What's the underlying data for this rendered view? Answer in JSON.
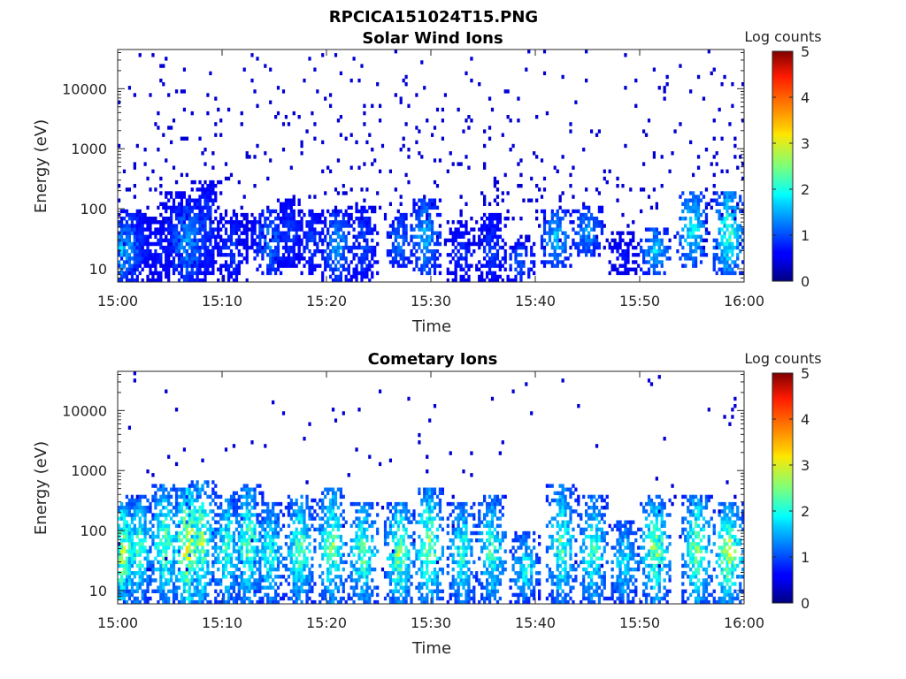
{
  "figure": {
    "title": "RPCICA151024T15.PNG"
  },
  "chart_data": [
    {
      "type": "heatmap",
      "title": "Solar Wind Ions",
      "xlabel": "Time",
      "ylabel": "Energy (eV)",
      "x_ticks": [
        "15:00",
        "15:10",
        "15:20",
        "15:30",
        "15:40",
        "15:50",
        "16:00"
      ],
      "x_range_minutes": [
        0,
        60
      ],
      "y_scale": "log",
      "y_ticks": [
        "10",
        "100",
        "1000",
        "10000"
      ],
      "y_range": [
        6,
        45000
      ],
      "colorbar": {
        "label": "Log counts",
        "ticks": [
          "0",
          "1",
          "2",
          "3",
          "4",
          "5"
        ],
        "range": [
          0,
          5
        ],
        "colormap": "jet"
      },
      "columns": [
        {
          "t": 0.4,
          "lo": 6,
          "hi": 60,
          "peak": 1.6
        },
        {
          "t": 1.2,
          "lo": 6,
          "hi": 100,
          "peak": 1.2
        },
        {
          "t": 2.2,
          "lo": 8,
          "hi": 80,
          "peak": 0.6
        },
        {
          "t": 4.0,
          "lo": 6,
          "hi": 70,
          "peak": 0.5
        },
        {
          "t": 5.5,
          "lo": 10,
          "hi": 200,
          "peak": 0.6
        },
        {
          "t": 6.5,
          "lo": 6,
          "hi": 120,
          "peak": 1.4
        },
        {
          "t": 7.3,
          "lo": 6,
          "hi": 150,
          "peak": 1.1
        },
        {
          "t": 8.5,
          "lo": 8,
          "hi": 300,
          "peak": 0.7
        },
        {
          "t": 11.0,
          "lo": 6,
          "hi": 80,
          "peak": 0.7
        },
        {
          "t": 13.0,
          "lo": 20,
          "hi": 60,
          "peak": 0.4
        },
        {
          "t": 14.5,
          "lo": 8,
          "hi": 100,
          "peak": 1.2
        },
        {
          "t": 16.5,
          "lo": 10,
          "hi": 150,
          "peak": 0.7
        },
        {
          "t": 18.5,
          "lo": 8,
          "hi": 100,
          "peak": 0.7
        },
        {
          "t": 21.0,
          "lo": 6,
          "hi": 100,
          "peak": 1.3
        },
        {
          "t": 23.5,
          "lo": 6,
          "hi": 120,
          "peak": 0.8
        },
        {
          "t": 27.0,
          "lo": 10,
          "hi": 80,
          "peak": 1.1
        },
        {
          "t": 29.5,
          "lo": 8,
          "hi": 150,
          "peak": 1.5
        },
        {
          "t": 33.0,
          "lo": 6,
          "hi": 60,
          "peak": 0.6
        },
        {
          "t": 35.8,
          "lo": 6,
          "hi": 80,
          "peak": 0.7
        },
        {
          "t": 38.5,
          "lo": 6,
          "hi": 30,
          "peak": 0.9
        },
        {
          "t": 42.0,
          "lo": 10,
          "hi": 100,
          "peak": 1.6
        },
        {
          "t": 45.0,
          "lo": 15,
          "hi": 120,
          "peak": 1.3
        },
        {
          "t": 48.5,
          "lo": 8,
          "hi": 40,
          "peak": 0.4
        },
        {
          "t": 51.5,
          "lo": 8,
          "hi": 50,
          "peak": 1.7
        },
        {
          "t": 55.0,
          "lo": 10,
          "hi": 200,
          "peak": 2.0
        },
        {
          "t": 58.5,
          "lo": 8,
          "hi": 200,
          "peak": 2.4
        }
      ]
    },
    {
      "type": "heatmap",
      "title": "Cometary Ions",
      "xlabel": "Time",
      "ylabel": "Energy (eV)",
      "x_ticks": [
        "15:00",
        "15:10",
        "15:20",
        "15:30",
        "15:40",
        "15:50",
        "16:00"
      ],
      "x_range_minutes": [
        0,
        60
      ],
      "y_scale": "log",
      "y_ticks": [
        "10",
        "100",
        "1000",
        "10000"
      ],
      "y_range": [
        6,
        45000
      ],
      "colorbar": {
        "label": "Log counts",
        "ticks": [
          "0",
          "1",
          "2",
          "3",
          "4",
          "5"
        ],
        "range": [
          0,
          5
        ],
        "colormap": "jet"
      },
      "columns": [
        {
          "t": 0.5,
          "lo": 6,
          "hi": 300,
          "peak": 3.0
        },
        {
          "t": 2.0,
          "lo": 6,
          "hi": 400,
          "peak": 2.4
        },
        {
          "t": 4.5,
          "lo": 6,
          "hi": 600,
          "peak": 2.6
        },
        {
          "t": 6.7,
          "lo": 6,
          "hi": 500,
          "peak": 3.6
        },
        {
          "t": 8.0,
          "lo": 6,
          "hi": 700,
          "peak": 2.8
        },
        {
          "t": 10.5,
          "lo": 6,
          "hi": 400,
          "peak": 2.3
        },
        {
          "t": 12.5,
          "lo": 6,
          "hi": 600,
          "peak": 2.6
        },
        {
          "t": 14.5,
          "lo": 6,
          "hi": 300,
          "peak": 2.2
        },
        {
          "t": 17.5,
          "lo": 6,
          "hi": 400,
          "peak": 2.5
        },
        {
          "t": 20.5,
          "lo": 6,
          "hi": 500,
          "peak": 2.7
        },
        {
          "t": 23.5,
          "lo": 6,
          "hi": 300,
          "peak": 2.6
        },
        {
          "t": 27.0,
          "lo": 6,
          "hi": 300,
          "peak": 2.8
        },
        {
          "t": 29.8,
          "lo": 6,
          "hi": 500,
          "peak": 2.9
        },
        {
          "t": 33.0,
          "lo": 6,
          "hi": 300,
          "peak": 2.3
        },
        {
          "t": 35.8,
          "lo": 6,
          "hi": 400,
          "peak": 2.3
        },
        {
          "t": 39.0,
          "lo": 6,
          "hi": 100,
          "peak": 2.0
        },
        {
          "t": 42.5,
          "lo": 6,
          "hi": 600,
          "peak": 2.5
        },
        {
          "t": 45.5,
          "lo": 6,
          "hi": 400,
          "peak": 2.4
        },
        {
          "t": 48.5,
          "lo": 6,
          "hi": 150,
          "peak": 2.0
        },
        {
          "t": 51.5,
          "lo": 6,
          "hi": 400,
          "peak": 2.8
        },
        {
          "t": 55.5,
          "lo": 6,
          "hi": 400,
          "peak": 2.8
        },
        {
          "t": 58.5,
          "lo": 6,
          "hi": 300,
          "peak": 3.1
        }
      ]
    }
  ]
}
